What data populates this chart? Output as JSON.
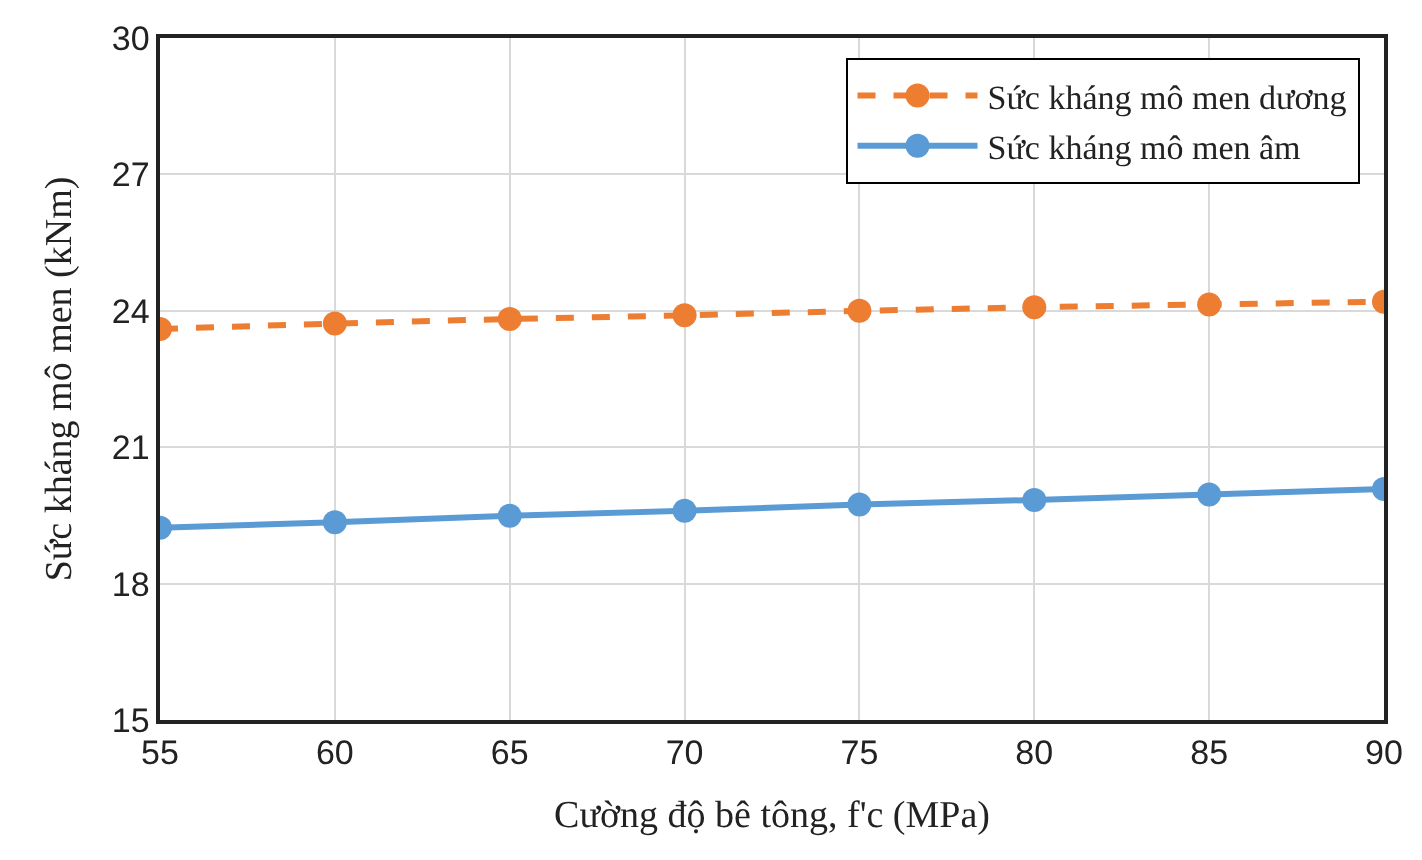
{
  "chart_data": {
    "type": "line",
    "xlabel": "Cường độ bê tông, f'c (MPa)",
    "ylabel": "Sức kháng mô men (kNm)",
    "x": [
      55,
      60,
      65,
      70,
      75,
      80,
      85,
      90
    ],
    "series": [
      {
        "name": "Sức kháng mô men dương",
        "color": "#ed7d31",
        "line_style": "dashed",
        "values": [
          23.6,
          23.72,
          23.82,
          23.9,
          24.0,
          24.08,
          24.14,
          24.2
        ]
      },
      {
        "name": "Sức kháng mô men âm",
        "color": "#5b9bd5",
        "line_style": "solid",
        "values": [
          19.23,
          19.35,
          19.49,
          19.6,
          19.74,
          19.84,
          19.96,
          20.08
        ]
      }
    ],
    "xlim": [
      55,
      90
    ],
    "xticks": [
      55,
      60,
      65,
      70,
      75,
      80,
      85,
      90
    ],
    "ylim": [
      15,
      30
    ],
    "yticks": [
      15,
      18,
      21,
      24,
      27,
      30
    ],
    "grid": true,
    "legend": "top right",
    "marker": "circle"
  }
}
